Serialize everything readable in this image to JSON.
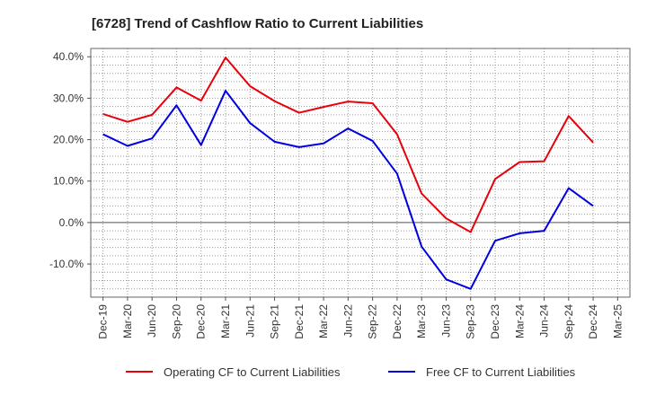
{
  "chart_data": {
    "type": "line",
    "title": "[6728]  Trend of Cashflow Ratio to Current Liabilities",
    "xlabel": "",
    "ylabel": "",
    "ylim": [
      -18,
      42
    ],
    "yticks": [
      -10,
      0,
      10,
      20,
      30,
      40
    ],
    "ytick_labels": [
      "-10.0%",
      "0.0%",
      "10.0%",
      "20.0%",
      "30.0%",
      "40.0%"
    ],
    "grid": true,
    "legend": "bottom",
    "x": [
      "Dec-19",
      "Mar-20",
      "Jun-20",
      "Sep-20",
      "Dec-20",
      "Mar-21",
      "Jun-21",
      "Sep-21",
      "Dec-21",
      "Mar-22",
      "Jun-22",
      "Sep-22",
      "Dec-22",
      "Mar-23",
      "Jun-23",
      "Sep-23",
      "Dec-23",
      "Mar-24",
      "Jun-24",
      "Sep-24",
      "Dec-24",
      "Mar-25"
    ],
    "series": [
      {
        "name": "Operating CF to Current Liabilities",
        "color": "#e8000b",
        "values": [
          26.2,
          24.3,
          26.0,
          32.6,
          29.4,
          39.8,
          32.9,
          29.3,
          26.5,
          27.9,
          29.2,
          28.8,
          21.3,
          7.0,
          1.0,
          -2.3,
          10.5,
          14.6,
          14.8,
          25.7,
          19.3,
          null
        ]
      },
      {
        "name": "Free CF to Current Liabilities",
        "color": "#0000e0",
        "values": [
          21.3,
          18.5,
          20.3,
          28.3,
          18.7,
          31.8,
          24.0,
          19.5,
          18.2,
          19.1,
          22.7,
          19.7,
          11.8,
          -5.8,
          -13.7,
          -16.0,
          -4.4,
          -2.6,
          -2.0,
          8.3,
          4.0,
          null
        ]
      }
    ]
  }
}
